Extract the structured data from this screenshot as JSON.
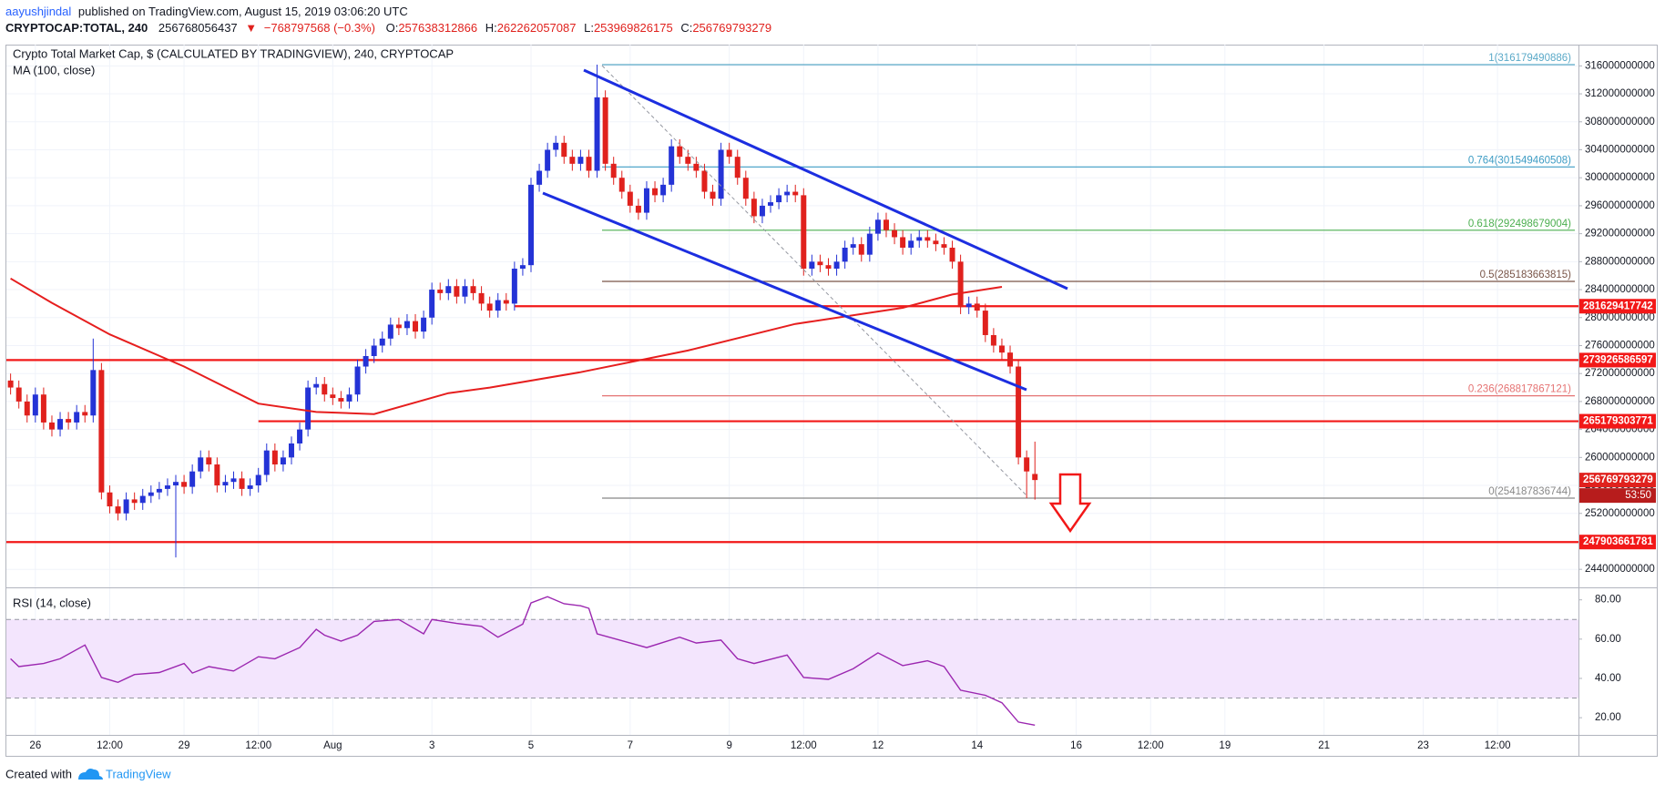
{
  "header": {
    "author": "aayushjindal",
    "published": "published on TradingView.com, August 15, 2019 03:06:20 UTC",
    "symbol": "CRYPTOCAP:TOTAL, 240",
    "price": "256768056437",
    "direction": "▼",
    "change": "−768797568 (−0.3%)",
    "ohlc": [
      {
        "label": "O:",
        "value": "257638312866"
      },
      {
        "label": "H:",
        "value": "262262057087"
      },
      {
        "label": "L:",
        "value": "253969826175"
      },
      {
        "label": "C:",
        "value": "256769793279"
      }
    ]
  },
  "footer": {
    "created": "Created with",
    "brand": "TradingView"
  },
  "chart_data": [
    {
      "type": "candlestick",
      "title": "Crypto Total Market Cap, $ (CALCULATED BY TRADINGVIEW), 240, CRYPTOCAP",
      "up_color": "#2433d6",
      "down_color": "#e0211d",
      "grid": true,
      "open": [
        271000000000.0,
        270000000000.0,
        268000000000.0,
        266000000000.0,
        269000000000.0,
        265000000000.0,
        264000000000.0,
        265500000000.0,
        265000000000.0,
        266500000000.0,
        266000000000.0,
        272500000000.0,
        255000000000.0,
        253000000000.0,
        252000000000.0,
        254000000000.0,
        253500000000.0,
        254500000000.0,
        255000000000.0,
        255500000000.0,
        256000000000.0,
        256500000000.0,
        255800000000.0,
        258000000000.0,
        260000000000.0,
        259000000000.0,
        256000000000.0,
        256500000000.0,
        257000000000.0,
        255500000000.0,
        256000000000.0,
        257500000000.0,
        261000000000.0,
        259000000000.0,
        260000000000.0,
        262000000000.0,
        264000000000.0,
        270000000000.0,
        270500000000.0,
        269000000000.0,
        268500000000.0,
        268000000000.0,
        269000000000.0,
        273000000000.0,
        274500000000.0,
        276000000000.0,
        277000000000.0,
        279000000000.0,
        278500000000.0,
        279500000000.0,
        278000000000.0,
        280000000000.0,
        284000000000.0,
        283500000000.0,
        284500000000.0,
        283000000000.0,
        284500000000.0,
        283500000000.0,
        282000000000.0,
        281000000000.0,
        282500000000.0,
        282000000000.0,
        287000000000.0,
        287500000000.0,
        299000000000.0,
        301000000000.0,
        304000000000.0,
        305000000000.0,
        303000000000.0,
        302000000000.0,
        303000000000.0,
        301000000000.0,
        311500000000.0,
        302000000000.0,
        300000000000.0,
        298000000000.0,
        296000000000.0,
        295000000000.0,
        298500000000.0,
        297500000000.0,
        299000000000.0,
        304500000000.0,
        303000000000.0,
        302000000000.0,
        301000000000.0,
        298000000000.0,
        297000000000.0,
        304000000000.0,
        303000000000.0,
        300000000000.0,
        297000000000.0,
        294500000000.0,
        296000000000.0,
        296500000000.0,
        297500000000.0,
        298000000000.0,
        297500000000.0,
        287000000000.0,
        288000000000.0,
        287500000000.0,
        287000000000.0,
        288000000000.0,
        290000000000.0,
        290500000000.0,
        289000000000.0,
        292000000000.0,
        294000000000.0,
        292500000000.0,
        291500000000.0,
        290000000000.0,
        291000000000.0,
        291500000000.0,
        291000000000.0,
        290500000000.0,
        290000000000.0,
        288000000000.0,
        281500000000.0,
        282000000000.0,
        281000000000.0,
        277500000000.0,
        276000000000.0,
        275000000000.0,
        273000000000.0,
        260000000000.0,
        257638312866
      ],
      "high": [
        272000000000.0,
        271000000000.0,
        269000000000.0,
        270000000000.0,
        270000000000.0,
        266000000000.0,
        266500000000.0,
        266500000000.0,
        267500000000.0,
        267500000000.0,
        277000000000.0,
        273500000000.0,
        256000000000.0,
        254000000000.0,
        255000000000.0,
        255000000000.0,
        255500000000.0,
        256000000000.0,
        256500000000.0,
        257000000000.0,
        257500000000.0,
        257500000000.0,
        259000000000.0,
        261000000000.0,
        261000000000.0,
        260000000000.0,
        257500000000.0,
        258000000000.0,
        258000000000.0,
        257000000000.0,
        258500000000.0,
        262000000000.0,
        262000000000.0,
        261000000000.0,
        263000000000.0,
        265000000000.0,
        271000000000.0,
        271500000000.0,
        271500000000.0,
        270000000000.0,
        269500000000.0,
        270000000000.0,
        274000000000.0,
        275500000000.0,
        277000000000.0,
        278000000000.0,
        280000000000.0,
        280000000000.0,
        280500000000.0,
        280500000000.0,
        281000000000.0,
        285000000000.0,
        285000000000.0,
        285500000000.0,
        285500000000.0,
        285500000000.0,
        285500000000.0,
        284500000000.0,
        283000000000.0,
        283500000000.0,
        283500000000.0,
        288000000000.0,
        288500000000.0,
        300000000000.0,
        302000000000.0,
        305000000000.0,
        306000000000.0,
        306000000000.0,
        304000000000.0,
        304000000000.0,
        304000000000.0,
        316179490886,
        312500000000.0,
        303000000000.0,
        301000000000.0,
        299000000000.0,
        297000000000.0,
        299500000000.0,
        299500000000.0,
        300000000000.0,
        305500000000.0,
        305500000000.0,
        304000000000.0,
        303000000000.0,
        302000000000.0,
        299000000000.0,
        305000000000.0,
        305000000000.0,
        304000000000.0,
        301000000000.0,
        298000000000.0,
        297000000000.0,
        297500000000.0,
        298500000000.0,
        299000000000.0,
        299000000000.0,
        298500000000.0,
        289000000000.0,
        289000000000.0,
        288500000000.0,
        289000000000.0,
        291000000000.0,
        291500000000.0,
        291500000000.0,
        293000000000.0,
        295000000000.0,
        295000000000.0,
        293500000000.0,
        292500000000.0,
        292000000000.0,
        292500000000.0,
        292500000000.0,
        292000000000.0,
        291500000000.0,
        291000000000.0,
        289000000000.0,
        283000000000.0,
        283000000000.0,
        282000000000.0,
        278500000000.0,
        277000000000.0,
        276000000000.0,
        274000000000.0,
        261000000000.0,
        262262057087
      ],
      "low": [
        269000000000.0,
        267000000000.0,
        265000000000.0,
        265000000000.0,
        264000000000.0,
        263000000000.0,
        263000000000.0,
        264000000000.0,
        264000000000.0,
        265000000000.0,
        265000000000.0,
        254000000000.0,
        252000000000.0,
        251000000000.0,
        251000000000.0,
        252500000000.0,
        252500000000.0,
        253500000000.0,
        254000000000.0,
        254500000000.0,
        245700000000.0,
        254800000000.0,
        254800000000.0,
        257000000000.0,
        258000000000.0,
        255000000000.0,
        255000000000.0,
        255500000000.0,
        254500000000.0,
        254500000000.0,
        255000000000.0,
        256500000000.0,
        258000000000.0,
        258000000000.0,
        259000000000.0,
        261000000000.0,
        263000000000.0,
        269000000000.0,
        268000000000.0,
        267500000000.0,
        267000000000.0,
        267000000000.0,
        268000000000.0,
        272000000000.0,
        273500000000.0,
        275000000000.0,
        276000000000.0,
        277500000000.0,
        277500000000.0,
        277000000000.0,
        277000000000.0,
        279000000000.0,
        282500000000.0,
        282500000000.0,
        282000000000.0,
        282000000000.0,
        282500000000.0,
        281000000000.0,
        280000000000.0,
        280000000000.0,
        281000000000.0,
        281000000000.0,
        286000000000.0,
        286500000000.0,
        298000000000.0,
        300000000000.0,
        303000000000.0,
        302000000000.0,
        301000000000.0,
        301000000000.0,
        300000000000.0,
        300000000000.0,
        301000000000.0,
        299000000000.0,
        297000000000.0,
        295000000000.0,
        294000000000.0,
        294000000000.0,
        296500000000.0,
        296500000000.0,
        298000000000.0,
        302000000000.0,
        301000000000.0,
        300000000000.0,
        297000000000.0,
        296000000000.0,
        296000000000.0,
        302000000000.0,
        299000000000.0,
        296000000000.0,
        293500000000.0,
        293500000000.0,
        295000000000.0,
        295500000000.0,
        296500000000.0,
        296500000000.0,
        286000000000.0,
        286000000000.0,
        286500000000.0,
        286000000000.0,
        286000000000.0,
        287000000000.0,
        289000000000.0,
        288000000000.0,
        288000000000.0,
        291000000000.0,
        291500000000.0,
        290500000000.0,
        289000000000.0,
        289000000000.0,
        290000000000.0,
        290000000000.0,
        289500000000.0,
        289000000000.0,
        287000000000.0,
        280500000000.0,
        280500000000.0,
        280000000000.0,
        276500000000.0,
        275000000000.0,
        274000000000.0,
        272000000000.0,
        259000000000.0,
        254187836744,
        253969826175
      ],
      "close": [
        270000000000.0,
        268000000000.0,
        266000000000.0,
        269000000000.0,
        265000000000.0,
        264000000000.0,
        265500000000.0,
        265000000000.0,
        266500000000.0,
        266000000000.0,
        272500000000.0,
        255000000000.0,
        253000000000.0,
        252000000000.0,
        254000000000.0,
        253500000000.0,
        254500000000.0,
        255000000000.0,
        255500000000.0,
        256000000000.0,
        256500000000.0,
        255800000000.0,
        258000000000.0,
        260000000000.0,
        259000000000.0,
        256000000000.0,
        256500000000.0,
        257000000000.0,
        255500000000.0,
        256000000000.0,
        257500000000.0,
        261000000000.0,
        259000000000.0,
        260000000000.0,
        262000000000.0,
        264000000000.0,
        270000000000.0,
        270500000000.0,
        269000000000.0,
        268500000000.0,
        268000000000.0,
        269000000000.0,
        273000000000.0,
        274500000000.0,
        276000000000.0,
        277000000000.0,
        279000000000.0,
        278500000000.0,
        279500000000.0,
        278000000000.0,
        280000000000.0,
        284000000000.0,
        283500000000.0,
        284500000000.0,
        283000000000.0,
        284500000000.0,
        283500000000.0,
        282000000000.0,
        281000000000.0,
        282500000000.0,
        282000000000.0,
        287000000000.0,
        287500000000.0,
        299000000000.0,
        301000000000.0,
        304000000000.0,
        305000000000.0,
        303000000000.0,
        302000000000.0,
        303000000000.0,
        301000000000.0,
        311500000000.0,
        302000000000.0,
        300000000000.0,
        298000000000.0,
        296000000000.0,
        295000000000.0,
        298500000000.0,
        297500000000.0,
        299000000000.0,
        304500000000.0,
        303000000000.0,
        302000000000.0,
        301000000000.0,
        298000000000.0,
        297000000000.0,
        304000000000.0,
        303000000000.0,
        300000000000.0,
        297000000000.0,
        294500000000.0,
        296000000000.0,
        296500000000.0,
        297500000000.0,
        298000000000.0,
        297500000000.0,
        287000000000.0,
        288000000000.0,
        287500000000.0,
        287000000000.0,
        288000000000.0,
        290000000000.0,
        290500000000.0,
        289000000000.0,
        292000000000.0,
        294000000000.0,
        292500000000.0,
        291500000000.0,
        290000000000.0,
        291000000000.0,
        291500000000.0,
        291000000000.0,
        290500000000.0,
        290000000000.0,
        288000000000.0,
        281500000000.0,
        282000000000.0,
        281000000000.0,
        277500000000.0,
        276000000000.0,
        275000000000.0,
        273000000000.0,
        260000000000.0,
        258000000000.0,
        256769793279
      ],
      "countdown": "53:50",
      "moving_average": {
        "name": "MA (100, close)",
        "color": "#e61e1e",
        "x": [
          0,
          5,
          12,
          21,
          30,
          37,
          44,
          53,
          58,
          69,
          82,
          95,
          108,
          114,
          120
        ],
        "values": [
          285600000000.0,
          282100000000.0,
          277600000000.0,
          273000000000.0,
          267700000000.0,
          266500000000.0,
          266200000000.0,
          269200000000.0,
          270000000000.0,
          272200000000.0,
          275300000000.0,
          279100000000.0,
          281400000000.0,
          283300000000.0,
          284400000000.0
        ]
      },
      "levels": [
        281629417742,
        273926586597,
        265179303771,
        247903661781
      ],
      "level_color": "#f21818",
      "fibonacci": [
        {
          "value": 316179490886,
          "label": "1(316179490886)",
          "color": "#5aa9c8"
        },
        {
          "value": 301549460508,
          "label": "0.764(301549460508)",
          "color": "#3d9cc4"
        },
        {
          "value": 292498679004,
          "label": "0.618(292498679004)",
          "color": "#4caf50"
        },
        {
          "value": 285183663815,
          "label": "0.5(285183663815)",
          "color": "#795548"
        },
        {
          "value": 268817867121,
          "label": "0.236(268817867121)",
          "color": "#e57373"
        },
        {
          "value": 254187836744,
          "label": "0(254187836744)",
          "color": "#888888"
        }
      ],
      "xlim": [
        -0.51,
        189.8
      ],
      "xticks": [
        {
          "value": 3,
          "label": "26"
        },
        {
          "value": 12,
          "label": "12:00"
        },
        {
          "value": 21,
          "label": "29"
        },
        {
          "value": 30,
          "label": "12:00"
        },
        {
          "value": 39,
          "label": "Aug"
        },
        {
          "value": 51,
          "label": "3"
        },
        {
          "value": 63,
          "label": "5"
        },
        {
          "value": 75,
          "label": "7"
        },
        {
          "value": 87,
          "label": "9"
        },
        {
          "value": 96,
          "label": "12:00"
        },
        {
          "value": 105,
          "label": "12"
        },
        {
          "value": 117,
          "label": "14"
        },
        {
          "value": 129,
          "label": "16"
        },
        {
          "value": 138,
          "label": "12:00"
        },
        {
          "value": 147,
          "label": "19"
        },
        {
          "value": 159,
          "label": "21"
        },
        {
          "value": 171,
          "label": "23"
        },
        {
          "value": 180,
          "label": "12:00"
        }
      ],
      "ylim": [
        241420000000,
        319040000000
      ],
      "yticks": [
        244000000000,
        248000000000,
        252000000000,
        256000000000,
        260000000000,
        264000000000,
        268000000000,
        272000000000,
        276000000000,
        280000000000,
        284000000000,
        288000000000,
        292000000000,
        296000000000,
        300000000000,
        304000000000,
        308000000000,
        312000000000,
        316000000000
      ]
    },
    {
      "type": "line",
      "title": "RSI (14, close)",
      "color": "#9b27b0",
      "band_color": "#f3e5fd",
      "bands": [
        30,
        70
      ],
      "x": [
        0,
        1,
        4,
        6,
        9,
        11,
        13,
        15,
        18,
        21,
        22,
        24,
        27,
        30,
        32,
        35,
        37,
        38,
        40,
        42,
        44,
        47,
        50,
        51,
        54,
        57,
        59,
        62,
        63,
        65,
        67,
        69,
        70,
        71,
        75,
        77,
        81,
        83,
        86,
        88,
        90,
        94,
        96,
        99,
        102,
        105,
        108,
        111,
        113,
        115,
        118,
        120,
        122,
        124
      ],
      "values": [
        50,
        46,
        47.6,
        50,
        57,
        40.5,
        38,
        42,
        43,
        47.6,
        42.7,
        46,
        43.8,
        51,
        50,
        55.7,
        65,
        62,
        59,
        62,
        69,
        70,
        62.7,
        70,
        68,
        66.5,
        61,
        67.6,
        78.4,
        81.6,
        78,
        77,
        75.7,
        62.7,
        58,
        55.7,
        61,
        58,
        59.5,
        50,
        47.6,
        51.9,
        40.5,
        39.5,
        44.9,
        53,
        46.5,
        49,
        46,
        34,
        31.4,
        27.6,
        17.8,
        16.2
      ],
      "ylim": [
        11.24,
        86.35
      ],
      "yticks": [
        {
          "value": 20,
          "label": "20.00"
        },
        {
          "value": 40,
          "label": "40.00"
        },
        {
          "value": 60,
          "label": "60.00"
        },
        {
          "value": 80,
          "label": "80.00"
        }
      ]
    }
  ]
}
